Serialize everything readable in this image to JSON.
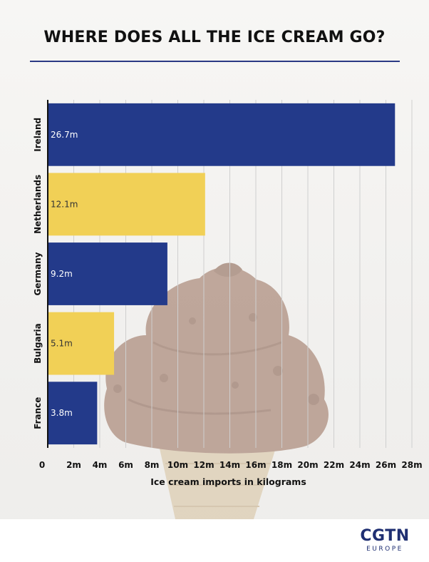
{
  "title": "WHERE DOES ALL THE ICE CREAM GO?",
  "colors": {
    "blue": "#233a8a",
    "yellow": "#f1d056",
    "rule": "#2a3a84",
    "logo": "#1f2f72",
    "ice_cream": "#a07a68",
    "cone": "#d9c6a6"
  },
  "chart_data": {
    "type": "bar",
    "orientation": "horizontal",
    "categories": [
      "Ireland",
      "Netherlands",
      "Germany",
      "Bulgaria",
      "France"
    ],
    "values": [
      26.7,
      12.1,
      9.2,
      5.1,
      3.8
    ],
    "value_labels": [
      "26.7m",
      "12.1m",
      "9.2m",
      "5.1m",
      "3.8m"
    ],
    "bar_colors": [
      "#233a8a",
      "#f1d056",
      "#233a8a",
      "#f1d056",
      "#233a8a"
    ],
    "label_colors": [
      "#ffffff",
      "#333333",
      "#ffffff",
      "#333333",
      "#ffffff"
    ],
    "xlabel": "Ice cream imports in kilograms",
    "ylabel": "",
    "xlim": [
      0,
      28
    ],
    "xticks": [
      0,
      2,
      4,
      6,
      8,
      10,
      12,
      14,
      16,
      18,
      20,
      22,
      24,
      26,
      28
    ],
    "xtick_labels": [
      "0",
      "2m",
      "4m",
      "6m",
      "8m",
      "10m",
      "12m",
      "14m",
      "16m",
      "18m",
      "20m",
      "22m",
      "24m",
      "26m",
      "28m"
    ],
    "grid": "vertical",
    "legend": "none"
  },
  "logo": {
    "main": "CGTN",
    "sub": "EUROPE"
  }
}
